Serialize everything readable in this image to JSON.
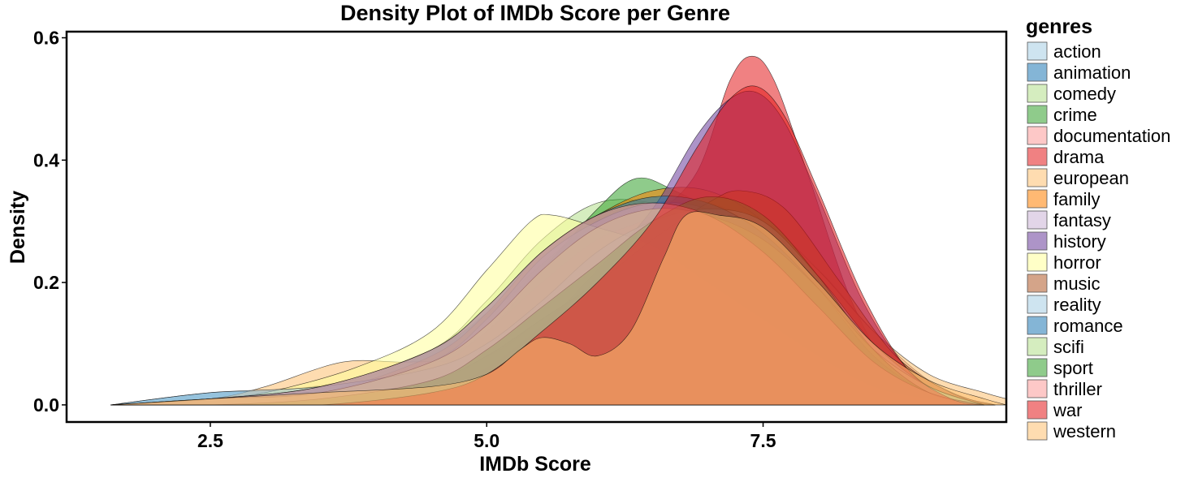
{
  "chart_data": {
    "type": "area",
    "title": "Density Plot of IMDb Score per Genre",
    "xlabel": "IMDb Score",
    "ylabel": "Density",
    "xlim": [
      1.2,
      9.7
    ],
    "ylim": [
      -0.028,
      0.61
    ],
    "xticks": [
      2.5,
      5.0,
      7.5
    ],
    "xtick_labels": [
      "2.5",
      "5.0",
      "7.5"
    ],
    "yticks": [
      0.0,
      0.2,
      0.4,
      0.6
    ],
    "ytick_labels": [
      "0.0",
      "0.2",
      "0.4",
      "0.6"
    ],
    "grid": false,
    "legend": {
      "title": "genres",
      "position": "right"
    },
    "series": [
      {
        "name": "action",
        "color": "#a6cee3",
        "x": [
          1.6,
          2.5,
          3.0,
          4.0,
          4.8,
          5.5,
          6.3,
          6.8,
          7.3,
          7.8,
          8.3,
          8.8,
          9.3,
          9.6
        ],
        "y": [
          0.0,
          0.01,
          0.02,
          0.05,
          0.12,
          0.22,
          0.31,
          0.33,
          0.3,
          0.21,
          0.11,
          0.04,
          0.01,
          0.0
        ]
      },
      {
        "name": "animation",
        "color": "#1f78b4",
        "x": [
          1.6,
          2.5,
          3.5,
          4.5,
          5.0,
          5.5,
          6.0,
          6.5,
          7.0,
          7.5,
          8.0,
          8.5,
          9.0,
          9.5
        ],
        "y": [
          0.0,
          0.02,
          0.03,
          0.09,
          0.15,
          0.23,
          0.3,
          0.33,
          0.33,
          0.29,
          0.2,
          0.09,
          0.02,
          0.0
        ]
      },
      {
        "name": "comedy",
        "color": "#b2df8a",
        "x": [
          1.6,
          2.5,
          3.5,
          4.5,
          5.0,
          5.5,
          6.0,
          6.5,
          7.0,
          7.5,
          8.0,
          8.5,
          9.0,
          9.5
        ],
        "y": [
          0.0,
          0.01,
          0.03,
          0.09,
          0.17,
          0.27,
          0.33,
          0.33,
          0.3,
          0.25,
          0.17,
          0.08,
          0.02,
          0.0
        ]
      },
      {
        "name": "crime",
        "color": "#33a02c",
        "x": [
          1.6,
          2.5,
          3.5,
          4.5,
          5.0,
          5.5,
          6.0,
          6.35,
          6.7,
          7.2,
          7.7,
          8.2,
          8.7,
          9.2,
          9.6
        ],
        "y": [
          0.0,
          0.01,
          0.02,
          0.07,
          0.12,
          0.22,
          0.32,
          0.37,
          0.35,
          0.3,
          0.22,
          0.12,
          0.04,
          0.01,
          0.0
        ]
      },
      {
        "name": "documentation",
        "color": "#fb9a99",
        "x": [
          1.6,
          2.5,
          3.5,
          4.5,
          5.0,
          5.5,
          6.0,
          6.5,
          7.0,
          7.5,
          8.0,
          8.5,
          9.0,
          9.5
        ],
        "y": [
          0.0,
          0.0,
          0.01,
          0.04,
          0.08,
          0.15,
          0.22,
          0.27,
          0.29,
          0.28,
          0.22,
          0.12,
          0.04,
          0.0
        ]
      },
      {
        "name": "drama",
        "color": "#e31a1c",
        "x": [
          1.6,
          2.5,
          3.5,
          4.5,
          5.0,
          5.5,
          6.0,
          6.5,
          6.9,
          7.2,
          7.4,
          7.6,
          7.9,
          8.3,
          8.7,
          9.2,
          9.5
        ],
        "y": [
          0.0,
          0.0,
          0.01,
          0.06,
          0.12,
          0.2,
          0.27,
          0.31,
          0.38,
          0.53,
          0.57,
          0.53,
          0.38,
          0.17,
          0.05,
          0.01,
          0.0
        ]
      },
      {
        "name": "european",
        "color": "#fdbf6f",
        "x": [
          1.6,
          2.5,
          3.0,
          3.7,
          4.3,
          5.0,
          5.5,
          6.0,
          6.5,
          7.0,
          7.5,
          8.0,
          8.5,
          9.0,
          9.5,
          9.7
        ],
        "y": [
          0.0,
          0.01,
          0.03,
          0.07,
          0.07,
          0.08,
          0.14,
          0.2,
          0.28,
          0.32,
          0.3,
          0.22,
          0.12,
          0.05,
          0.02,
          0.01
        ]
      },
      {
        "name": "family",
        "color": "#ff7f00",
        "x": [
          1.6,
          2.5,
          3.5,
          4.5,
          5.0,
          5.5,
          6.0,
          6.5,
          7.0,
          7.5,
          8.0,
          8.5,
          9.0,
          9.5
        ],
        "y": [
          0.0,
          0.01,
          0.02,
          0.08,
          0.15,
          0.25,
          0.31,
          0.35,
          0.35,
          0.3,
          0.2,
          0.08,
          0.02,
          0.0
        ]
      },
      {
        "name": "fantasy",
        "color": "#cab2d6",
        "x": [
          1.6,
          2.5,
          3.5,
          4.5,
          5.0,
          5.5,
          6.0,
          6.5,
          7.0,
          7.5,
          8.0,
          8.5,
          9.0,
          9.5
        ],
        "y": [
          0.0,
          0.01,
          0.02,
          0.07,
          0.14,
          0.24,
          0.3,
          0.33,
          0.32,
          0.27,
          0.19,
          0.09,
          0.02,
          0.0
        ]
      },
      {
        "name": "history",
        "color": "#6a3d9a",
        "x": [
          1.6,
          2.5,
          3.5,
          4.5,
          5.0,
          5.5,
          6.0,
          6.5,
          6.9,
          7.2,
          7.45,
          7.7,
          8.0,
          8.4,
          8.8,
          9.2,
          9.5
        ],
        "y": [
          0.0,
          0.0,
          0.0,
          0.02,
          0.06,
          0.13,
          0.22,
          0.32,
          0.44,
          0.5,
          0.51,
          0.46,
          0.34,
          0.17,
          0.06,
          0.01,
          0.0
        ]
      },
      {
        "name": "horror",
        "color": "#ffff99",
        "x": [
          1.6,
          2.5,
          3.0,
          3.8,
          4.5,
          5.0,
          5.4,
          5.6,
          6.0,
          6.5,
          7.0,
          7.5,
          8.0,
          8.5,
          9.0,
          9.5
        ],
        "y": [
          0.0,
          0.01,
          0.02,
          0.06,
          0.12,
          0.22,
          0.3,
          0.31,
          0.29,
          0.26,
          0.2,
          0.14,
          0.08,
          0.03,
          0.01,
          0.0
        ]
      },
      {
        "name": "music",
        "color": "#b15928",
        "x": [
          1.6,
          2.5,
          3.5,
          4.5,
          5.0,
          5.5,
          6.0,
          6.5,
          7.0,
          7.3,
          7.7,
          8.2,
          8.7,
          9.2,
          9.6
        ],
        "y": [
          0.0,
          0.0,
          0.01,
          0.04,
          0.08,
          0.14,
          0.2,
          0.27,
          0.33,
          0.35,
          0.32,
          0.2,
          0.08,
          0.02,
          0.0
        ]
      },
      {
        "name": "reality",
        "color": "#a6cee3",
        "x": [
          1.6,
          2.5,
          3.5,
          4.5,
          5.0,
          5.5,
          6.0,
          6.5,
          7.0,
          7.5,
          8.0,
          8.5,
          9.0,
          9.5
        ],
        "y": [
          0.0,
          0.02,
          0.03,
          0.06,
          0.1,
          0.17,
          0.25,
          0.3,
          0.32,
          0.3,
          0.21,
          0.1,
          0.03,
          0.0
        ]
      },
      {
        "name": "romance",
        "color": "#1f78b4",
        "x": [
          1.6,
          2.5,
          3.5,
          4.5,
          5.0,
          5.5,
          6.0,
          6.5,
          7.0,
          7.5,
          8.0,
          8.5,
          9.0,
          9.5
        ],
        "y": [
          0.0,
          0.01,
          0.03,
          0.09,
          0.16,
          0.25,
          0.31,
          0.34,
          0.33,
          0.28,
          0.19,
          0.08,
          0.02,
          0.0
        ]
      },
      {
        "name": "scifi",
        "color": "#b2df8a",
        "x": [
          1.6,
          2.5,
          3.5,
          4.5,
          5.0,
          5.5,
          6.0,
          6.5,
          7.0,
          7.5,
          8.0,
          8.5,
          9.0,
          9.5
        ],
        "y": [
          0.0,
          0.01,
          0.02,
          0.07,
          0.13,
          0.22,
          0.29,
          0.32,
          0.31,
          0.27,
          0.19,
          0.09,
          0.03,
          0.0
        ]
      },
      {
        "name": "sport",
        "color": "#33a02c",
        "x": [
          1.6,
          2.5,
          3.5,
          4.5,
          5.0,
          5.5,
          6.0,
          6.5,
          7.0,
          7.5,
          8.0,
          8.5,
          9.0,
          9.5
        ],
        "y": [
          0.0,
          0.0,
          0.01,
          0.04,
          0.09,
          0.16,
          0.23,
          0.3,
          0.34,
          0.31,
          0.21,
          0.09,
          0.02,
          0.0
        ]
      },
      {
        "name": "thriller",
        "color": "#fb9a99",
        "x": [
          1.6,
          2.5,
          3.5,
          4.5,
          5.0,
          5.5,
          6.0,
          6.5,
          7.0,
          7.5,
          8.0,
          8.5,
          9.0,
          9.5
        ],
        "y": [
          0.0,
          0.01,
          0.03,
          0.09,
          0.16,
          0.25,
          0.31,
          0.33,
          0.31,
          0.25,
          0.16,
          0.07,
          0.02,
          0.0
        ]
      },
      {
        "name": "war",
        "color": "#e31a1c",
        "x": [
          1.6,
          2.5,
          3.5,
          4.5,
          5.0,
          5.5,
          6.0,
          6.5,
          6.9,
          7.2,
          7.45,
          7.7,
          8.0,
          8.4,
          8.8,
          9.2,
          9.5
        ],
        "y": [
          0.0,
          0.0,
          0.0,
          0.02,
          0.05,
          0.12,
          0.2,
          0.3,
          0.42,
          0.5,
          0.52,
          0.47,
          0.35,
          0.18,
          0.06,
          0.01,
          0.0
        ]
      },
      {
        "name": "western",
        "color": "#fdbf6f",
        "x": [
          1.6,
          2.5,
          3.5,
          4.5,
          5.0,
          5.3,
          5.5,
          5.75,
          6.0,
          6.3,
          6.6,
          6.8,
          7.1,
          7.5,
          8.0,
          8.5,
          9.0,
          9.5,
          9.7
        ],
        "y": [
          0.0,
          0.01,
          0.02,
          0.03,
          0.05,
          0.09,
          0.11,
          0.1,
          0.08,
          0.12,
          0.24,
          0.31,
          0.31,
          0.29,
          0.2,
          0.1,
          0.04,
          0.01,
          0.0
        ]
      }
    ]
  }
}
